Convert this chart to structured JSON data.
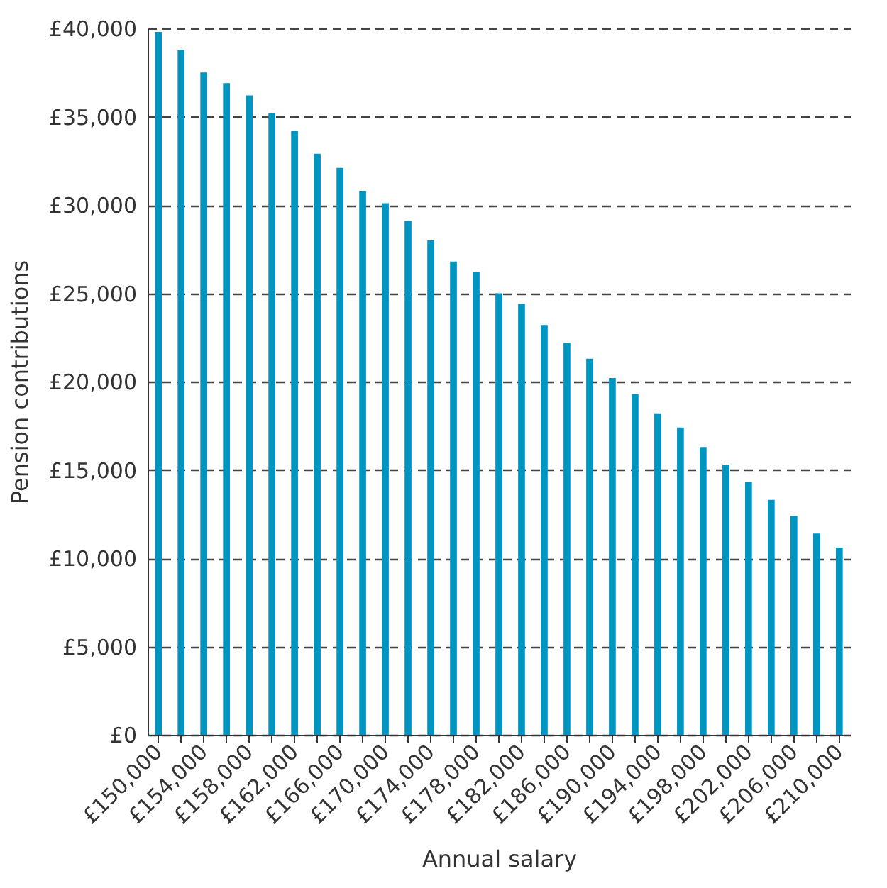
{
  "chart_data": {
    "type": "bar",
    "xlabel": "Annual salary",
    "ylabel": "Pension contributions",
    "categories": [
      "£150,000",
      null,
      "£154,000",
      null,
      "£158,000",
      null,
      "£162,000",
      null,
      "£166,000",
      null,
      "£170,000",
      null,
      "£174,000",
      null,
      "£178,000",
      null,
      "£182,000",
      null,
      "£186,000",
      null,
      "£190,000",
      null,
      "£194,000",
      null,
      "£198,000",
      null,
      "£202,000",
      null,
      "£206,000",
      null,
      "£210,000"
    ],
    "values": [
      39800,
      38800,
      37500,
      36900,
      36200,
      35200,
      34200,
      32900,
      32100,
      30800,
      30100,
      29100,
      28000,
      26800,
      26200,
      25000,
      24400,
      23200,
      22200,
      21300,
      20200,
      19300,
      18200,
      17400,
      16300,
      15300,
      14300,
      13300,
      12400,
      11400,
      10600
    ],
    "color": "#0095c0",
    "ylim": [
      0,
      40000
    ],
    "yticks": [
      {
        "value": 0,
        "label": "£0"
      },
      {
        "value": 5000,
        "label": "£5,000"
      },
      {
        "value": 10000,
        "label": "£10,000"
      },
      {
        "value": 15000,
        "label": "£15,000"
      },
      {
        "value": 20000,
        "label": "£20,000"
      },
      {
        "value": 25000,
        "label": "£25,000"
      },
      {
        "value": 30000,
        "label": "£30,000"
      },
      {
        "value": 35000,
        "label": "£35,000"
      },
      {
        "value": 40000,
        "label": "£40,000"
      }
    ],
    "grid": "y"
  }
}
